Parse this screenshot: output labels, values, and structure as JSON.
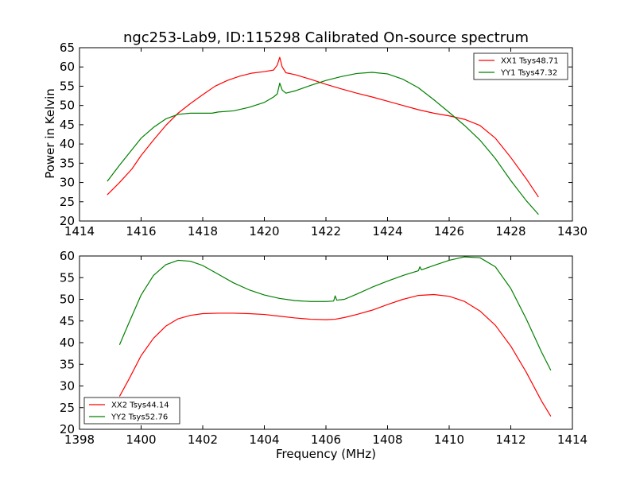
{
  "chart_data": [
    {
      "type": "line",
      "title": "ngc253-Lab9, ID:115298 Calibrated On-source spectrum",
      "xlabel": "",
      "ylabel": "Power in Kelvin",
      "xlim": [
        1414,
        1430
      ],
      "ylim": [
        20,
        65
      ],
      "xticks": [
        1414,
        1416,
        1418,
        1420,
        1422,
        1424,
        1426,
        1428,
        1430
      ],
      "yticks": [
        20,
        25,
        30,
        35,
        40,
        45,
        50,
        55,
        60,
        65
      ],
      "grid": false,
      "legend_position": "top-right",
      "series": [
        {
          "name": "XX1 Tsys48.71",
          "color": "#ff0000",
          "points": [
            [
              1414.9,
              26.8
            ],
            [
              1415.3,
              30.0
            ],
            [
              1415.7,
              33.5
            ],
            [
              1416.0,
              37.0
            ],
            [
              1416.4,
              41.0
            ],
            [
              1416.8,
              44.8
            ],
            [
              1417.2,
              48.0
            ],
            [
              1417.6,
              50.5
            ],
            [
              1418.0,
              52.8
            ],
            [
              1418.4,
              55.0
            ],
            [
              1418.8,
              56.5
            ],
            [
              1419.2,
              57.6
            ],
            [
              1419.6,
              58.4
            ],
            [
              1420.0,
              58.8
            ],
            [
              1420.3,
              59.2
            ],
            [
              1420.42,
              60.5
            ],
            [
              1420.5,
              62.5
            ],
            [
              1420.58,
              60.0
            ],
            [
              1420.7,
              58.5
            ],
            [
              1421.0,
              58.0
            ],
            [
              1421.5,
              56.8
            ],
            [
              1422.0,
              55.5
            ],
            [
              1422.5,
              54.3
            ],
            [
              1423.0,
              53.2
            ],
            [
              1423.5,
              52.2
            ],
            [
              1424.0,
              51.1
            ],
            [
              1424.5,
              50.0
            ],
            [
              1425.0,
              48.9
            ],
            [
              1425.5,
              48.0
            ],
            [
              1426.0,
              47.3
            ],
            [
              1426.5,
              46.4
            ],
            [
              1427.0,
              44.8
            ],
            [
              1427.5,
              41.5
            ],
            [
              1428.0,
              36.5
            ],
            [
              1428.5,
              31.0
            ],
            [
              1428.9,
              26.2
            ]
          ]
        },
        {
          "name": "YY1 Tsys47.32",
          "color": "#008000",
          "points": [
            [
              1414.9,
              30.3
            ],
            [
              1415.3,
              34.5
            ],
            [
              1415.7,
              38.5
            ],
            [
              1416.0,
              41.5
            ],
            [
              1416.4,
              44.3
            ],
            [
              1416.8,
              46.5
            ],
            [
              1417.2,
              47.7
            ],
            [
              1417.6,
              48.0
            ],
            [
              1418.0,
              48.0
            ],
            [
              1418.3,
              48.0
            ],
            [
              1418.5,
              48.3
            ],
            [
              1419.0,
              48.6
            ],
            [
              1419.5,
              49.5
            ],
            [
              1420.0,
              50.8
            ],
            [
              1420.3,
              52.2
            ],
            [
              1420.42,
              53.0
            ],
            [
              1420.5,
              55.8
            ],
            [
              1420.58,
              54.0
            ],
            [
              1420.7,
              53.2
            ],
            [
              1421.0,
              53.8
            ],
            [
              1421.5,
              55.2
            ],
            [
              1422.0,
              56.5
            ],
            [
              1422.5,
              57.5
            ],
            [
              1423.0,
              58.3
            ],
            [
              1423.5,
              58.6
            ],
            [
              1424.0,
              58.2
            ],
            [
              1424.5,
              56.8
            ],
            [
              1425.0,
              54.6
            ],
            [
              1425.5,
              51.5
            ],
            [
              1426.0,
              48.2
            ],
            [
              1426.5,
              44.8
            ],
            [
              1427.0,
              41.0
            ],
            [
              1427.5,
              36.2
            ],
            [
              1428.0,
              30.5
            ],
            [
              1428.5,
              25.3
            ],
            [
              1428.9,
              21.7
            ]
          ]
        }
      ]
    },
    {
      "type": "line",
      "title": "",
      "xlabel": "Frequency (MHz)",
      "ylabel": "",
      "xlim": [
        1398,
        1414
      ],
      "ylim": [
        20,
        60
      ],
      "xticks": [
        1398,
        1400,
        1402,
        1404,
        1406,
        1408,
        1410,
        1412,
        1414
      ],
      "yticks": [
        20,
        25,
        30,
        35,
        40,
        45,
        50,
        55,
        60
      ],
      "grid": false,
      "legend_position": "bottom-left",
      "series": [
        {
          "name": "XX2 Tsys44.14",
          "color": "#ff0000",
          "points": [
            [
              1399.3,
              27.6
            ],
            [
              1399.6,
              31.5
            ],
            [
              1400.0,
              37.0
            ],
            [
              1400.4,
              41.0
            ],
            [
              1400.8,
              43.8
            ],
            [
              1401.2,
              45.5
            ],
            [
              1401.6,
              46.3
            ],
            [
              1402.0,
              46.7
            ],
            [
              1402.5,
              46.8
            ],
            [
              1403.0,
              46.8
            ],
            [
              1403.5,
              46.7
            ],
            [
              1404.0,
              46.5
            ],
            [
              1404.5,
              46.1
            ],
            [
              1405.0,
              45.7
            ],
            [
              1405.5,
              45.4
            ],
            [
              1406.0,
              45.3
            ],
            [
              1406.3,
              45.4
            ],
            [
              1406.6,
              45.8
            ],
            [
              1407.0,
              46.5
            ],
            [
              1407.5,
              47.5
            ],
            [
              1408.0,
              48.8
            ],
            [
              1408.5,
              50.0
            ],
            [
              1409.0,
              50.9
            ],
            [
              1409.5,
              51.1
            ],
            [
              1410.0,
              50.7
            ],
            [
              1410.5,
              49.5
            ],
            [
              1411.0,
              47.3
            ],
            [
              1411.5,
              44.0
            ],
            [
              1412.0,
              39.2
            ],
            [
              1412.5,
              33.2
            ],
            [
              1413.0,
              26.5
            ],
            [
              1413.3,
              23.0
            ]
          ]
        },
        {
          "name": "YY2 Tsys52.76",
          "color": "#008000",
          "points": [
            [
              1399.3,
              39.5
            ],
            [
              1399.6,
              44.5
            ],
            [
              1400.0,
              51.0
            ],
            [
              1400.4,
              55.5
            ],
            [
              1400.8,
              58.0
            ],
            [
              1401.2,
              59.0
            ],
            [
              1401.6,
              58.8
            ],
            [
              1402.0,
              57.8
            ],
            [
              1402.5,
              55.8
            ],
            [
              1403.0,
              53.8
            ],
            [
              1403.5,
              52.2
            ],
            [
              1404.0,
              51.0
            ],
            [
              1404.5,
              50.2
            ],
            [
              1405.0,
              49.7
            ],
            [
              1405.5,
              49.5
            ],
            [
              1406.0,
              49.5
            ],
            [
              1406.25,
              49.6
            ],
            [
              1406.3,
              50.8
            ],
            [
              1406.35,
              49.8
            ],
            [
              1406.6,
              50.0
            ],
            [
              1407.0,
              51.2
            ],
            [
              1407.5,
              52.8
            ],
            [
              1408.0,
              54.2
            ],
            [
              1408.5,
              55.5
            ],
            [
              1409.0,
              56.6
            ],
            [
              1409.05,
              57.5
            ],
            [
              1409.1,
              56.8
            ],
            [
              1409.5,
              57.8
            ],
            [
              1410.0,
              59.0
            ],
            [
              1410.5,
              59.8
            ],
            [
              1411.0,
              59.6
            ],
            [
              1411.5,
              57.5
            ],
            [
              1412.0,
              52.5
            ],
            [
              1412.5,
              45.5
            ],
            [
              1413.0,
              37.8
            ],
            [
              1413.3,
              33.6
            ]
          ]
        }
      ]
    }
  ]
}
